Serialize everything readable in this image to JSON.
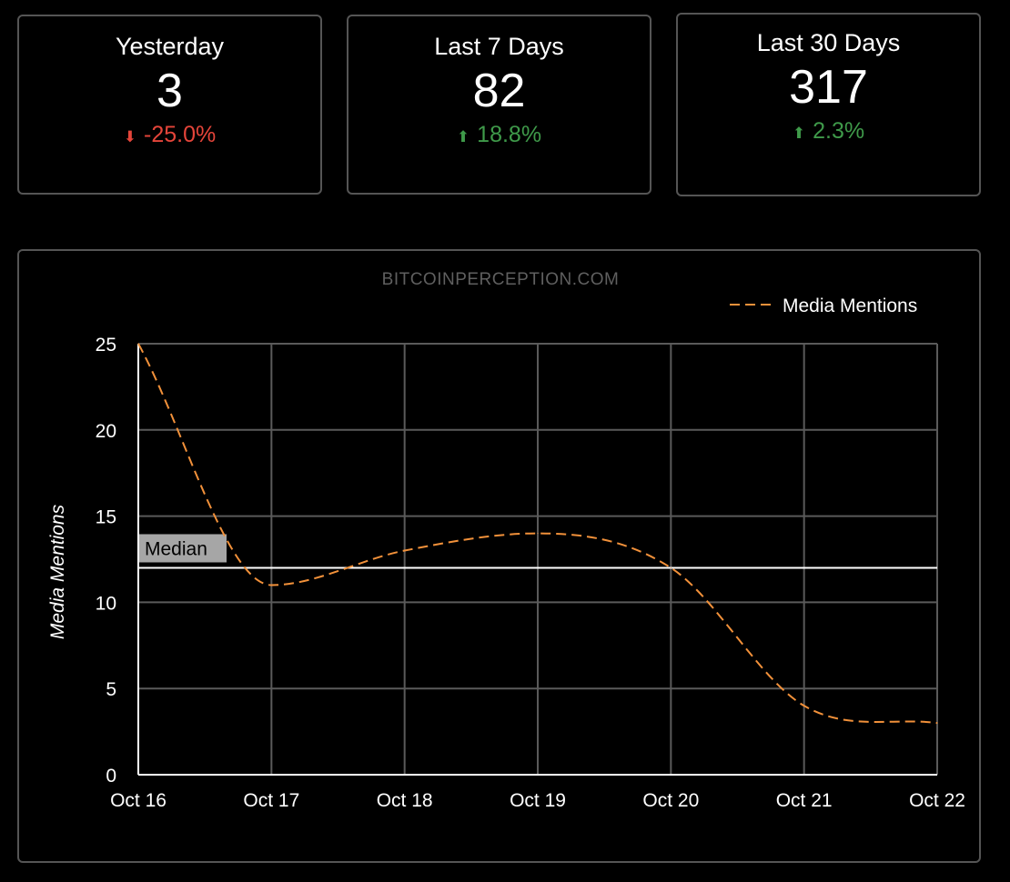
{
  "stats": [
    {
      "title": "Yesterday",
      "value": "3",
      "change": "-25.0%",
      "direction": "down",
      "arrow_icon": "arrow-down-icon",
      "color": "#e5453a"
    },
    {
      "title": "Last 7 Days",
      "value": "82",
      "change": "18.8%",
      "direction": "up",
      "arrow_icon": "arrow-up-icon",
      "color": "#3f9a4a"
    },
    {
      "title": "Last 30 Days",
      "value": "317",
      "change": "2.3%",
      "direction": "up",
      "arrow_icon": "arrow-up-icon",
      "color": "#3f9a4a"
    }
  ],
  "chart_data": {
    "type": "line",
    "watermark": "BITCOINPERCEPTION.COM",
    "x": [
      "Oct 16",
      "Oct 17",
      "Oct 18",
      "Oct 19",
      "Oct 20",
      "Oct 21",
      "Oct 22"
    ],
    "series": [
      {
        "name": "Media Mentions",
        "values": [
          25,
          11,
          13,
          14,
          12,
          4,
          3
        ],
        "color": "#f2913a",
        "style": "dashed"
      }
    ],
    "ylabel": "Media Mentions",
    "ylim": [
      0,
      25
    ],
    "yticks": [
      0,
      5,
      10,
      15,
      20,
      25
    ],
    "median": {
      "label": "Median",
      "value": 12
    },
    "grid": true,
    "legend": "top-right"
  }
}
